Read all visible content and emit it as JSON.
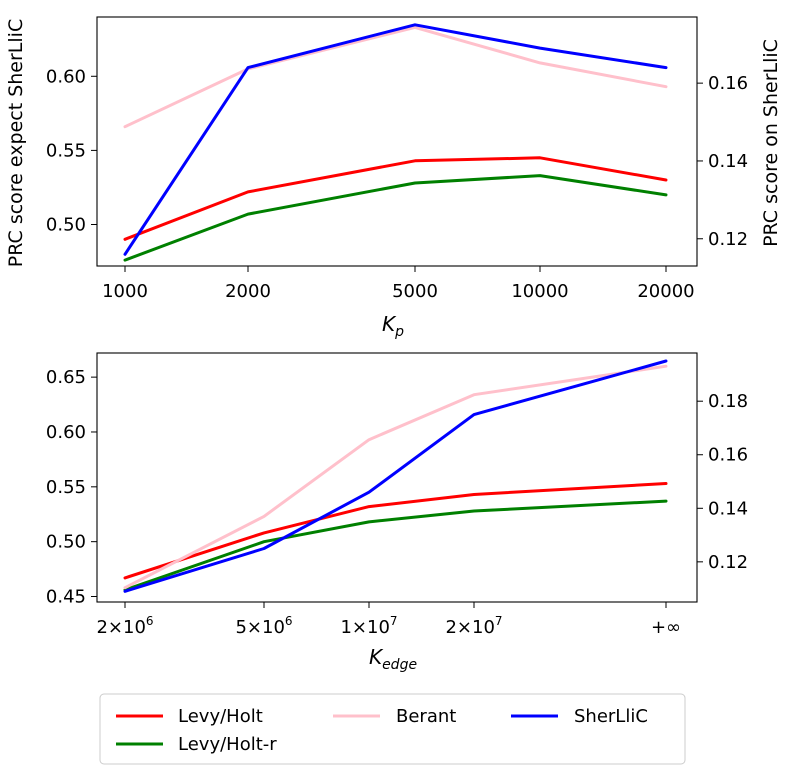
{
  "chart_data": [
    {
      "type": "line",
      "xlabel_base": "K",
      "xlabel_sub": "p",
      "ylabel_left": "PRC score expect SherLliC",
      "ylabel_right": "PRC score on SherLliC",
      "categories": [
        "1000",
        "2000",
        "5000",
        "10000",
        "20000"
      ],
      "x": [
        1000,
        2000,
        5000,
        10000,
        20000
      ],
      "xscale": "log",
      "yticks_left": [
        0.5,
        0.55,
        0.6
      ],
      "ytick_labels_left": [
        "0.50",
        "0.55",
        "0.60"
      ],
      "ylim_left": [
        0.472,
        0.64
      ],
      "yticks_right": [
        0.12,
        0.14,
        0.16
      ],
      "ytick_labels_right": [
        "0.12",
        "0.14",
        "0.16"
      ],
      "ylim_right": [
        0.113,
        0.177
      ],
      "series": [
        {
          "name": "Levy/Holt",
          "axis": "left",
          "color": "#ff0000",
          "values": [
            0.49,
            0.522,
            0.543,
            0.545,
            0.53
          ]
        },
        {
          "name": "Levy/Holt-r",
          "axis": "left",
          "color": "#008000",
          "values": [
            0.476,
            0.507,
            0.528,
            0.533,
            0.52
          ]
        },
        {
          "name": "Berant",
          "axis": "left",
          "color": "#ffc0cb",
          "values": [
            0.566,
            0.605,
            0.633,
            0.609,
            0.593
          ]
        },
        {
          "name": "SherLliC",
          "axis": "right",
          "color": "#0000ff",
          "values": [
            0.116,
            0.164,
            0.175,
            0.169,
            0.164
          ]
        }
      ]
    },
    {
      "type": "line",
      "xlabel_base": "K",
      "xlabel_sub": "edge",
      "categories": [
        "2×10^6",
        "5×10^6",
        "1×10^7",
        "2×10^7",
        "+∞"
      ],
      "tick_labels": [
        {
          "mant": "2",
          "exp": "6"
        },
        {
          "mant": "5",
          "exp": "6"
        },
        {
          "mant": "1",
          "exp": "7"
        },
        {
          "mant": "2",
          "exp": "7"
        },
        {
          "text": "+∞"
        }
      ],
      "x": [
        2000000,
        5000000,
        10000000,
        20000000,
        "inf"
      ],
      "yticks_left": [
        0.45,
        0.5,
        0.55,
        0.6,
        0.65
      ],
      "ytick_labels_left": [
        "0.45",
        "0.50",
        "0.55",
        "0.60",
        "0.65"
      ],
      "ylim_left": [
        0.445,
        0.672
      ],
      "yticks_right": [
        0.12,
        0.14,
        0.16,
        0.18
      ],
      "ytick_labels_right": [
        "0.12",
        "0.14",
        "0.16",
        "0.18"
      ],
      "ylim_right": [
        0.105,
        0.198
      ],
      "series": [
        {
          "name": "Levy/Holt",
          "axis": "left",
          "color": "#ff0000",
          "values": [
            0.467,
            0.508,
            0.532,
            0.543,
            0.553
          ]
        },
        {
          "name": "Levy/Holt-r",
          "axis": "left",
          "color": "#008000",
          "values": [
            0.456,
            0.5,
            0.518,
            0.528,
            0.537
          ]
        },
        {
          "name": "Berant",
          "axis": "left",
          "color": "#ffc0cb",
          "values": [
            0.458,
            0.523,
            0.593,
            0.634,
            0.66
          ]
        },
        {
          "name": "SherLliC",
          "axis": "right",
          "color": "#0000ff",
          "values": [
            0.109,
            0.125,
            0.146,
            0.175,
            0.195
          ]
        }
      ]
    }
  ],
  "legend": {
    "placement": "bottom-center",
    "entries": [
      {
        "name": "Levy/Holt",
        "color": "#ff0000"
      },
      {
        "name": "Berant",
        "color": "#ffc0cb"
      },
      {
        "name": "SherLliC",
        "color": "#0000ff"
      },
      {
        "name": "Levy/Holt-r",
        "color": "#008000"
      }
    ]
  }
}
